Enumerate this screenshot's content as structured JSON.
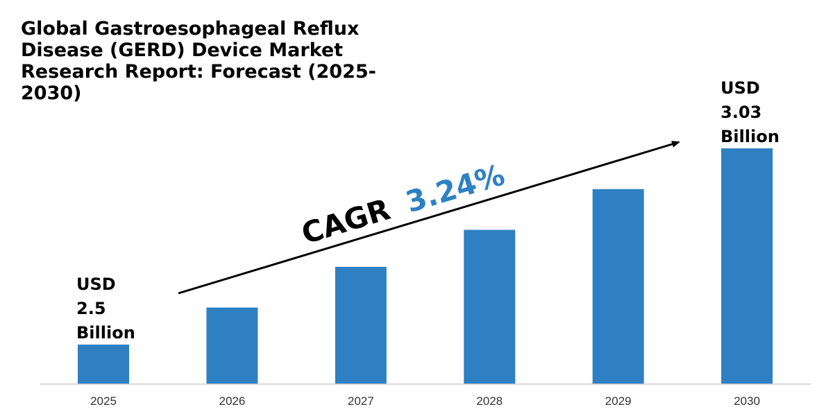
{
  "title": "Global Gastroesophageal Reflux Disease (GERD) Device Market Research Report: Forecast (2025-2030)",
  "cagr": {
    "label": "CAGR",
    "value": "3.24%"
  },
  "start_label": {
    "line1": "USD",
    "line2": "2.5",
    "line3": "Billion"
  },
  "end_label": {
    "line1": "USD",
    "line2": "3.03",
    "line3": "Billion"
  },
  "colors": {
    "bar": "#2e80c3",
    "cagr_value": "#2e80c3",
    "text": "#000000",
    "axis": "#cccccc"
  },
  "chart_data": {
    "type": "bar",
    "title": "Global Gastroesophageal Reflux Disease (GERD) Device Market Research Report: Forecast (2025-2030)",
    "xlabel": "",
    "ylabel": "",
    "categories": [
      "2025",
      "2026",
      "2027",
      "2028",
      "2029",
      "2030"
    ],
    "values": [
      2.5,
      2.6,
      2.71,
      2.81,
      2.92,
      3.03
    ],
    "ylim": [
      0,
      3.03
    ],
    "grid": false,
    "legend": "none"
  }
}
